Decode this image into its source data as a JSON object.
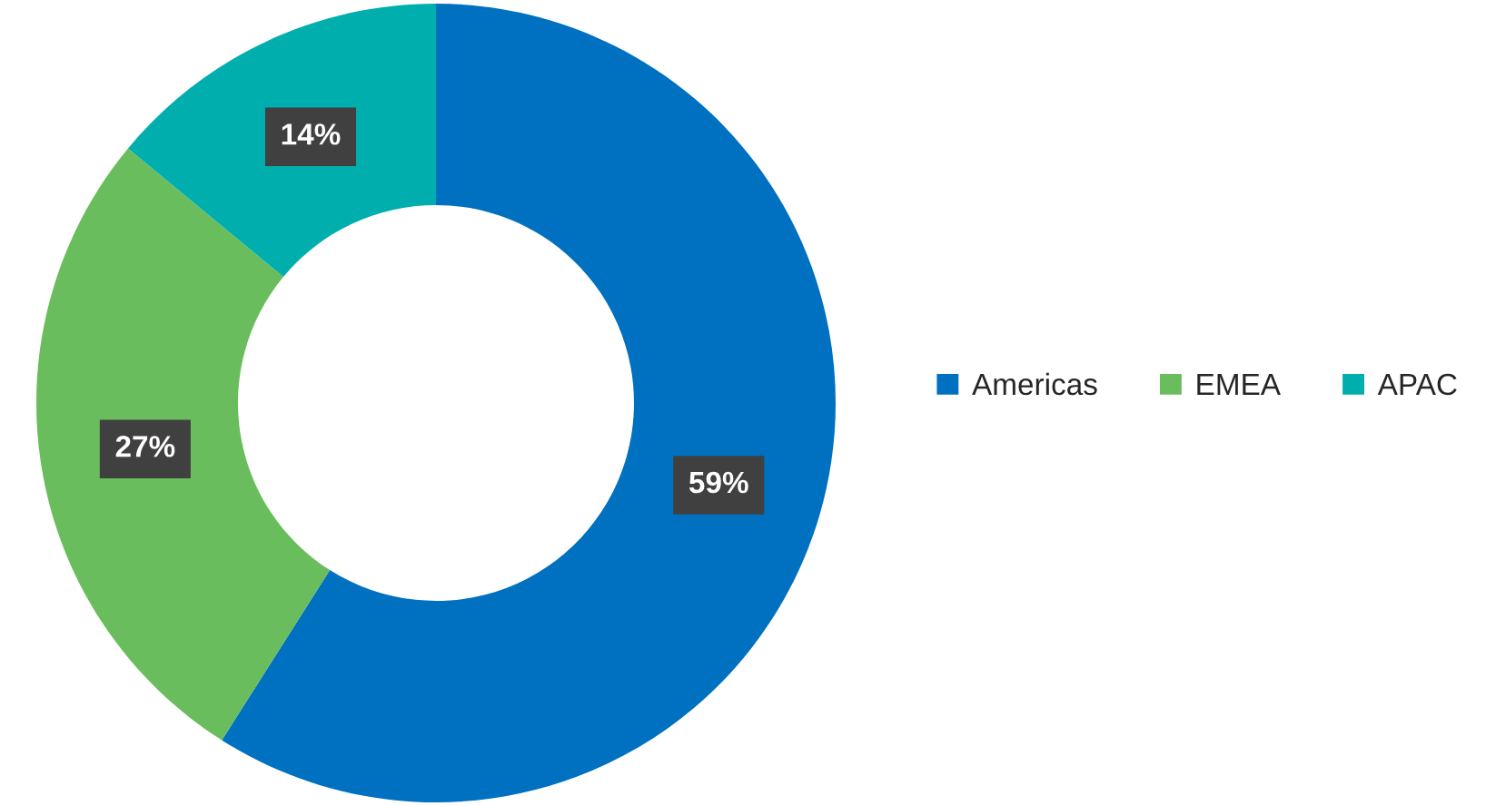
{
  "chart_data": {
    "type": "donut",
    "categories": [
      "Americas",
      "EMEA",
      "APAC"
    ],
    "values": [
      59,
      27,
      14
    ],
    "colors": [
      "#0070c0",
      "#6abd5c",
      "#00aeae"
    ],
    "value_labels": [
      "59%",
      "27%",
      "14%"
    ],
    "legend": "right"
  }
}
